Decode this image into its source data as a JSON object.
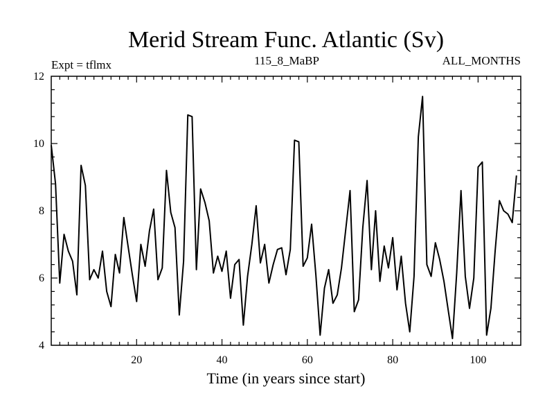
{
  "chart_data": {
    "type": "line",
    "title": "Merid Stream Func. Atlantic (Sv)",
    "subtitle_left": "Expt = tflmx",
    "subtitle_center": "115_8_MaBP",
    "subtitle_right": "ALL_MONTHS",
    "xlabel": "Time (in years since start)",
    "ylabel": "",
    "xlim": [
      0,
      110
    ],
    "ylim": [
      4,
      12
    ],
    "xticks": [
      20,
      40,
      60,
      80,
      100
    ],
    "yticks": [
      4,
      6,
      8,
      10,
      12
    ],
    "x_start": 0,
    "x_step": 1,
    "series": [
      {
        "name": "Merid Stream Func. Atlantic",
        "color": "#000000",
        "values": [
          9.95,
          8.8,
          5.85,
          7.3,
          6.8,
          6.5,
          5.5,
          9.35,
          8.75,
          5.95,
          6.25,
          6.0,
          6.8,
          5.6,
          5.15,
          6.7,
          6.15,
          7.8,
          6.95,
          6.1,
          5.3,
          7.0,
          6.35,
          7.4,
          8.05,
          5.95,
          6.3,
          9.2,
          7.95,
          7.5,
          4.9,
          6.5,
          10.85,
          10.8,
          6.25,
          8.65,
          8.25,
          7.7,
          6.15,
          6.65,
          6.2,
          6.8,
          5.4,
          6.4,
          6.55,
          4.6,
          6.05,
          7.0,
          8.15,
          6.45,
          7.0,
          5.85,
          6.4,
          6.85,
          6.9,
          6.1,
          6.85,
          10.1,
          10.05,
          6.35,
          6.6,
          7.6,
          6.1,
          4.3,
          5.7,
          6.25,
          5.25,
          5.5,
          6.3,
          7.45,
          8.6,
          5.0,
          5.35,
          7.5,
          8.9,
          6.25,
          8.0,
          5.9,
          6.95,
          6.3,
          7.2,
          5.65,
          6.65,
          5.25,
          4.4,
          6.05,
          10.2,
          11.4,
          6.4,
          6.05,
          7.05,
          6.55,
          5.9,
          5.05,
          4.2,
          6.15,
          8.6,
          6.05,
          5.1,
          6.0,
          9.3,
          9.45,
          4.3,
          5.1,
          6.8,
          8.3,
          8.0,
          7.9,
          7.65,
          9.05
        ]
      }
    ]
  }
}
